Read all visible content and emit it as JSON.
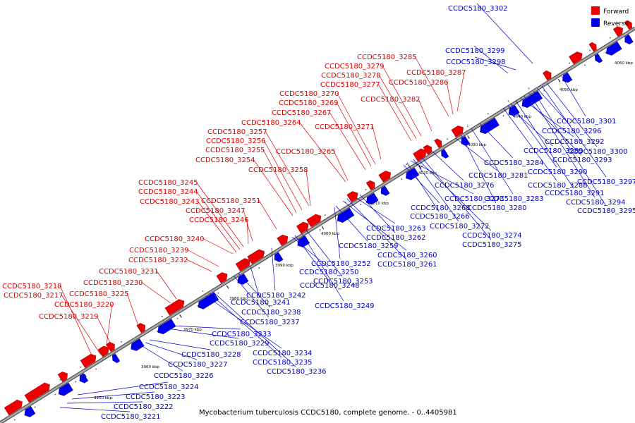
{
  "caption": "Mycobacterium tuberculosis CCDC5180, complete genome. - 0..4405981",
  "colors": {
    "forward": "#ee0000",
    "reverse": "#0000ee",
    "axis": "#888888"
  },
  "legend": [
    {
      "label": "Forward",
      "strand": "forward"
    },
    {
      "label": "Reverse",
      "strand": "reverse"
    }
  ],
  "ticks": [
    "3950 kbp",
    "3960 kbp",
    "3970 kbp",
    "3980 kbp",
    "3990 kbp",
    "4000 kbp",
    "4010 kbp",
    "4020 kbp",
    "4030 kbp",
    "4040 kbp",
    "4050 kbp",
    "4060 kbp"
  ],
  "forward_genes": [
    "CCDC5180_3217",
    "CCDC5180_3218",
    "CCDC5180_3219",
    "CCDC5180_3220",
    "CCDC5180_3225",
    "CCDC5180_3230",
    "CCDC5180_3231",
    "CCDC5180_3232",
    "CCDC5180_3239",
    "CCDC5180_3240",
    "CCDC5180_3243",
    "CCDC5180_3244",
    "CCDC5180_3245",
    "CCDC5180_3246",
    "CCDC5180_3247",
    "CCDC5180_3251",
    "CCDC5180_3254",
    "CCDC5180_3255",
    "CCDC5180_3256",
    "CCDC5180_3257",
    "CCDC5180_3258",
    "CCDC5180_3264",
    "CCDC5180_3265",
    "CCDC5180_3267",
    "CCDC5180_3269",
    "CCDC5180_3270",
    "CCDC5180_3271",
    "CCDC5180_3277",
    "CCDC5180_3278",
    "CCDC5180_3279",
    "CCDC5180_3282",
    "CCDC5180_3285",
    "CCDC5180_3286",
    "CCDC5180_3287"
  ],
  "reverse_genes": [
    "CCDC5180_3221",
    "CCDC5180_3222",
    "CCDC5180_3223",
    "CCDC5180_3224",
    "CCDC5180_3226",
    "CCDC5180_3227",
    "CCDC5180_3228",
    "CCDC5180_3229",
    "CCDC5180_3233",
    "CCDC5180_3234",
    "CCDC5180_3235",
    "CCDC5180_3236",
    "CCDC5180_3237",
    "CCDC5180_3238",
    "CCDC5180_3241",
    "CCDC5180_3242",
    "CCDC5180_3248",
    "CCDC5180_3249",
    "CCDC5180_3250",
    "CCDC5180_3252",
    "CCDC5180_3253",
    "CCDC5180_3259",
    "CCDC5180_3260",
    "CCDC5180_3261",
    "CCDC5180_3262",
    "CCDC5180_3263",
    "CCDC5180_3266",
    "CCDC5180_3268",
    "CCDC5180_3272",
    "CCDC5180_3273",
    "CCDC5180_3274",
    "CCDC5180_3275",
    "CCDC5180_3276",
    "CCDC5180_3280",
    "CCDC5180_3281",
    "CCDC5180_3283",
    "CCDC5180_3284",
    "CCDC5180_3288",
    "CCDC5180_3289",
    "CCDC5180_3290",
    "CCDC5180_3291",
    "CCDC5180_3292",
    "CCDC5180_3293",
    "CCDC5180_3294",
    "CCDC5180_3295",
    "CCDC5180_3296",
    "CCDC5180_3297",
    "CCDC5180_3298",
    "CCDC5180_3299",
    "CCDC5180_3300",
    "CCDC5180_3301",
    "CCDC5180_3302"
  ]
}
